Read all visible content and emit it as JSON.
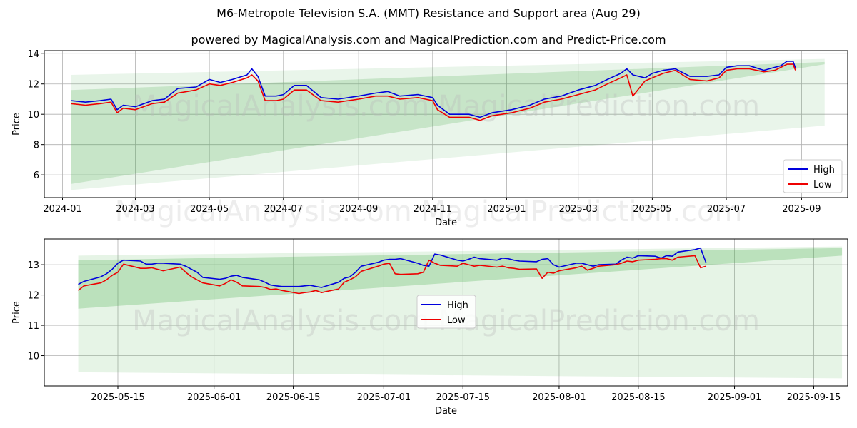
{
  "header": {
    "title": "M6-Metropole Television S.A. (MMT) Resistance and Support area (Aug 29)",
    "subtitle": "powered by MagicalAnalysis.com and MagicalPrediction.com and Predict-Price.com"
  },
  "watermarks": [
    "MagicalAnalysis.com",
    "MagicalPrediction.com"
  ],
  "colors": {
    "high": "#0000dd",
    "low": "#ee0000",
    "band": "#4caf50",
    "grid": "#b0b0b0"
  },
  "chart_data": [
    {
      "type": "line",
      "xlabel": "Date",
      "ylabel": "Price",
      "x_ticks": [
        "2024-01",
        "2024-03",
        "2024-05",
        "2024-07",
        "2024-09",
        "2024-11",
        "2025-01",
        "2025-03",
        "2025-05",
        "2025-07",
        "2025-09"
      ],
      "y_ticks": [
        6,
        8,
        10,
        12,
        14
      ],
      "xlim": [
        "2023-12-17",
        "2025-10-09"
      ],
      "ylim": [
        4.5,
        14.2
      ],
      "grid": true,
      "legend_position": "lower right",
      "legend": [
        "High",
        "Low"
      ],
      "bands": [
        {
          "x": [
            "2024-01-08",
            "2025-09-20"
          ],
          "upper": [
            12.6,
            13.65
          ],
          "lower": [
            5.0,
            9.25
          ],
          "opacity": 0.12
        },
        {
          "x": [
            "2024-01-08",
            "2025-09-20"
          ],
          "upper": [
            11.6,
            13.45
          ],
          "lower": [
            5.4,
            13.3
          ],
          "opacity": 0.22
        }
      ],
      "series": [
        {
          "name": "High",
          "x": [
            "2024-01-08",
            "2024-01-20",
            "2024-02-01",
            "2024-02-10",
            "2024-02-15",
            "2024-02-20",
            "2024-03-01",
            "2024-03-15",
            "2024-03-25",
            "2024-04-05",
            "2024-04-20",
            "2024-05-01",
            "2024-05-10",
            "2024-05-20",
            "2024-06-01",
            "2024-06-05",
            "2024-06-10",
            "2024-06-16",
            "2024-06-25",
            "2024-07-01",
            "2024-07-10",
            "2024-07-20",
            "2024-08-01",
            "2024-08-15",
            "2024-09-01",
            "2024-09-15",
            "2024-09-25",
            "2024-10-05",
            "2024-10-20",
            "2024-11-01",
            "2024-11-05",
            "2024-11-15",
            "2024-12-01",
            "2024-12-10",
            "2024-12-20",
            "2025-01-05",
            "2025-01-20",
            "2025-02-01",
            "2025-02-15",
            "2025-03-01",
            "2025-03-15",
            "2025-03-25",
            "2025-04-05",
            "2025-04-10",
            "2025-04-15",
            "2025-04-25",
            "2025-05-01",
            "2025-05-10",
            "2025-05-20",
            "2025-06-01",
            "2025-06-15",
            "2025-06-25",
            "2025-07-01",
            "2025-07-10",
            "2025-07-20",
            "2025-08-01",
            "2025-08-10",
            "2025-08-15",
            "2025-08-20",
            "2025-08-25",
            "2025-08-27"
          ],
          "values": [
            10.9,
            10.8,
            10.9,
            11.0,
            10.3,
            10.6,
            10.5,
            10.9,
            11.0,
            11.7,
            11.8,
            12.3,
            12.1,
            12.3,
            12.6,
            13.0,
            12.5,
            11.2,
            11.2,
            11.3,
            11.9,
            11.9,
            11.1,
            11.0,
            11.2,
            11.4,
            11.5,
            11.2,
            11.3,
            11.1,
            10.6,
            10.0,
            10.0,
            9.8,
            10.1,
            10.3,
            10.6,
            11.0,
            11.2,
            11.6,
            11.9,
            12.3,
            12.7,
            13.0,
            12.6,
            12.4,
            12.7,
            12.9,
            13.0,
            12.5,
            12.5,
            12.6,
            13.1,
            13.2,
            13.2,
            12.9,
            13.1,
            13.2,
            13.5,
            13.5,
            13.05
          ]
        },
        {
          "name": "Low",
          "x": [
            "2024-01-08",
            "2024-01-20",
            "2024-02-01",
            "2024-02-10",
            "2024-02-15",
            "2024-02-20",
            "2024-03-01",
            "2024-03-15",
            "2024-03-25",
            "2024-04-05",
            "2024-04-20",
            "2024-05-01",
            "2024-05-10",
            "2024-05-20",
            "2024-06-01",
            "2024-06-05",
            "2024-06-10",
            "2024-06-16",
            "2024-06-25",
            "2024-07-01",
            "2024-07-10",
            "2024-07-20",
            "2024-08-01",
            "2024-08-15",
            "2024-09-01",
            "2024-09-15",
            "2024-09-25",
            "2024-10-05",
            "2024-10-20",
            "2024-11-01",
            "2024-11-05",
            "2024-11-15",
            "2024-12-01",
            "2024-12-10",
            "2024-12-20",
            "2025-01-05",
            "2025-01-20",
            "2025-02-01",
            "2025-02-15",
            "2025-03-01",
            "2025-03-15",
            "2025-03-25",
            "2025-04-05",
            "2025-04-10",
            "2025-04-15",
            "2025-04-25",
            "2025-05-01",
            "2025-05-10",
            "2025-05-20",
            "2025-06-01",
            "2025-06-15",
            "2025-06-25",
            "2025-07-01",
            "2025-07-10",
            "2025-07-20",
            "2025-08-01",
            "2025-08-10",
            "2025-08-15",
            "2025-08-20",
            "2025-08-25",
            "2025-08-27"
          ],
          "values": [
            10.7,
            10.6,
            10.7,
            10.8,
            10.1,
            10.4,
            10.3,
            10.7,
            10.8,
            11.4,
            11.6,
            12.0,
            11.9,
            12.1,
            12.4,
            12.6,
            12.2,
            10.9,
            10.9,
            11.0,
            11.6,
            11.6,
            10.9,
            10.8,
            11.0,
            11.2,
            11.2,
            11.0,
            11.1,
            10.9,
            10.3,
            9.8,
            9.8,
            9.6,
            9.9,
            10.1,
            10.4,
            10.8,
            11.0,
            11.3,
            11.6,
            12.0,
            12.4,
            12.6,
            11.2,
            12.2,
            12.4,
            12.7,
            12.9,
            12.3,
            12.2,
            12.4,
            12.9,
            13.0,
            13.0,
            12.8,
            12.9,
            13.1,
            13.3,
            13.3,
            12.9
          ]
        }
      ]
    },
    {
      "type": "line",
      "xlabel": "Date",
      "ylabel": "Price",
      "x_ticks": [
        "2025-05-15",
        "2025-06-01",
        "2025-06-15",
        "2025-07-01",
        "2025-07-15",
        "2025-08-01",
        "2025-08-15",
        "2025-09-01",
        "2025-09-15"
      ],
      "y_ticks": [
        10,
        11,
        12,
        13
      ],
      "xlim": [
        "2025-05-02",
        "2025-09-21"
      ],
      "ylim": [
        9.0,
        13.85
      ],
      "grid": true,
      "legend_position": "center",
      "legend": [
        "High",
        "Low"
      ],
      "bands": [
        {
          "x": [
            "2025-05-08",
            "2025-09-20"
          ],
          "upper": [
            13.3,
            13.6
          ],
          "lower": [
            9.45,
            9.25
          ],
          "opacity": 0.14
        },
        {
          "x": [
            "2025-05-08",
            "2025-09-20"
          ],
          "upper": [
            13.15,
            13.55
          ],
          "lower": [
            11.55,
            13.3
          ],
          "opacity": 0.28
        }
      ],
      "series": [
        {
          "name": "High",
          "x": [
            "2025-05-08",
            "2025-05-09",
            "2025-05-12",
            "2025-05-13",
            "2025-05-14",
            "2025-05-15",
            "2025-05-16",
            "2025-05-19",
            "2025-05-20",
            "2025-05-21",
            "2025-05-22",
            "2025-05-23",
            "2025-05-26",
            "2025-05-27",
            "2025-05-28",
            "2025-05-29",
            "2025-05-30",
            "2025-06-02",
            "2025-06-03",
            "2025-06-04",
            "2025-06-05",
            "2025-06-06",
            "2025-06-09",
            "2025-06-10",
            "2025-06-11",
            "2025-06-12",
            "2025-06-13",
            "2025-06-16",
            "2025-06-17",
            "2025-06-18",
            "2025-06-19",
            "2025-06-20",
            "2025-06-23",
            "2025-06-24",
            "2025-06-25",
            "2025-06-26",
            "2025-06-27",
            "2025-06-30",
            "2025-07-01",
            "2025-07-02",
            "2025-07-03",
            "2025-07-04",
            "2025-07-07",
            "2025-07-08",
            "2025-07-09",
            "2025-07-10",
            "2025-07-11",
            "2025-07-14",
            "2025-07-15",
            "2025-07-16",
            "2025-07-17",
            "2025-07-18",
            "2025-07-21",
            "2025-07-22",
            "2025-07-23",
            "2025-07-24",
            "2025-07-25",
            "2025-07-28",
            "2025-07-29",
            "2025-07-30",
            "2025-07-31",
            "2025-08-01",
            "2025-08-04",
            "2025-08-05",
            "2025-08-06",
            "2025-08-07",
            "2025-08-08",
            "2025-08-11",
            "2025-08-12",
            "2025-08-13",
            "2025-08-14",
            "2025-08-15",
            "2025-08-18",
            "2025-08-19",
            "2025-08-20",
            "2025-08-21",
            "2025-08-22",
            "2025-08-25",
            "2025-08-26",
            "2025-08-27"
          ],
          "values": [
            12.35,
            12.45,
            12.6,
            12.7,
            12.85,
            13.05,
            13.15,
            13.12,
            13.02,
            13.02,
            13.05,
            13.05,
            13.02,
            12.95,
            12.85,
            12.75,
            12.58,
            12.52,
            12.55,
            12.62,
            12.65,
            12.58,
            12.5,
            12.42,
            12.33,
            12.3,
            12.28,
            12.28,
            12.3,
            12.32,
            12.28,
            12.25,
            12.42,
            12.55,
            12.6,
            12.75,
            12.95,
            13.08,
            13.15,
            13.18,
            13.18,
            13.2,
            13.05,
            12.98,
            12.95,
            13.35,
            13.32,
            13.15,
            13.12,
            13.18,
            13.25,
            13.2,
            13.15,
            13.22,
            13.2,
            13.15,
            13.12,
            13.1,
            13.18,
            13.2,
            13.0,
            12.92,
            13.05,
            13.05,
            13.0,
            12.95,
            13.0,
            13.02,
            13.15,
            13.25,
            13.22,
            13.3,
            13.28,
            13.22,
            13.3,
            13.28,
            13.42,
            13.5,
            13.55,
            13.05
          ],
          "label_visible": false
        },
        {
          "name": "Low",
          "x": [
            "2025-05-08",
            "2025-05-09",
            "2025-05-12",
            "2025-05-13",
            "2025-05-14",
            "2025-05-15",
            "2025-05-16",
            "2025-05-19",
            "2025-05-20",
            "2025-05-21",
            "2025-05-22",
            "2025-05-23",
            "2025-05-26",
            "2025-05-27",
            "2025-05-28",
            "2025-05-29",
            "2025-05-30",
            "2025-06-02",
            "2025-06-03",
            "2025-06-04",
            "2025-06-05",
            "2025-06-06",
            "2025-06-09",
            "2025-06-10",
            "2025-06-11",
            "2025-06-12",
            "2025-06-13",
            "2025-06-16",
            "2025-06-17",
            "2025-06-18",
            "2025-06-19",
            "2025-06-20",
            "2025-06-23",
            "2025-06-24",
            "2025-06-25",
            "2025-06-26",
            "2025-06-27",
            "2025-06-30",
            "2025-07-01",
            "2025-07-02",
            "2025-07-03",
            "2025-07-04",
            "2025-07-07",
            "2025-07-08",
            "2025-07-09",
            "2025-07-10",
            "2025-07-11",
            "2025-07-14",
            "2025-07-15",
            "2025-07-16",
            "2025-07-17",
            "2025-07-18",
            "2025-07-21",
            "2025-07-22",
            "2025-07-23",
            "2025-07-24",
            "2025-07-25",
            "2025-07-28",
            "2025-07-29",
            "2025-07-30",
            "2025-07-31",
            "2025-08-01",
            "2025-08-04",
            "2025-08-05",
            "2025-08-06",
            "2025-08-07",
            "2025-08-08",
            "2025-08-11",
            "2025-08-12",
            "2025-08-13",
            "2025-08-14",
            "2025-08-15",
            "2025-08-18",
            "2025-08-19",
            "2025-08-20",
            "2025-08-21",
            "2025-08-22",
            "2025-08-25",
            "2025-08-26",
            "2025-08-27"
          ],
          "values": [
            12.15,
            12.3,
            12.4,
            12.5,
            12.65,
            12.75,
            13.02,
            12.88,
            12.88,
            12.9,
            12.85,
            12.8,
            12.92,
            12.75,
            12.6,
            12.5,
            12.4,
            12.3,
            12.38,
            12.5,
            12.42,
            12.3,
            12.28,
            12.25,
            12.18,
            12.2,
            12.15,
            12.05,
            12.08,
            12.1,
            12.15,
            12.08,
            12.2,
            12.42,
            12.5,
            12.6,
            12.78,
            12.95,
            13.02,
            13.05,
            12.7,
            12.68,
            12.7,
            12.75,
            13.15,
            13.05,
            12.98,
            12.95,
            13.05,
            13.0,
            12.95,
            12.98,
            12.92,
            12.95,
            12.9,
            12.88,
            12.85,
            12.86,
            12.55,
            12.75,
            12.72,
            12.8,
            12.9,
            12.95,
            12.82,
            12.88,
            12.95,
            13.0,
            13.05,
            13.12,
            13.1,
            13.15,
            13.18,
            13.2,
            13.2,
            13.15,
            13.25,
            13.3,
            12.9,
            12.95
          ]
        }
      ]
    }
  ]
}
